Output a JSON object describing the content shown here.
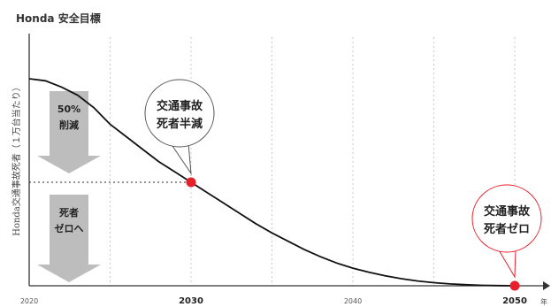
{
  "title": "Honda 安全目標",
  "chart_data": {
    "type": "line",
    "ylabel": "Honda交通事故死者（１万台当たり）",
    "x_unit": "年",
    "xlim": [
      2020,
      2050
    ],
    "ylim": [
      0,
      1
    ],
    "x_ticks": [
      {
        "value": 2020,
        "label": "2020",
        "emphasis": false
      },
      {
        "value": 2030,
        "label": "2030",
        "emphasis": true
      },
      {
        "value": 2040,
        "label": "2040",
        "emphasis": false
      },
      {
        "value": 2050,
        "label": "2050",
        "emphasis": true
      }
    ],
    "grid": "vertical-dashed",
    "series": [
      {
        "x": [
          2020,
          2021,
          2022,
          2023,
          2024,
          2025,
          2026,
          2027,
          2028,
          2029,
          2030,
          2031,
          2032,
          2033,
          2034,
          2035,
          2036,
          2037,
          2038,
          2039,
          2040,
          2041,
          2042,
          2043,
          2044,
          2045,
          2046,
          2047,
          2048,
          2049,
          2050
        ],
        "values": [
          1.0,
          0.99,
          0.96,
          0.92,
          0.86,
          0.78,
          0.72,
          0.66,
          0.6,
          0.55,
          0.5,
          0.45,
          0.4,
          0.35,
          0.3,
          0.255,
          0.215,
          0.175,
          0.14,
          0.11,
          0.085,
          0.065,
          0.048,
          0.034,
          0.023,
          0.015,
          0.009,
          0.005,
          0.002,
          0.001,
          0.0
        ],
        "color": "#111111"
      }
    ],
    "markers": [
      {
        "x": 2030,
        "y": 0.5,
        "color": "#e8202a"
      },
      {
        "x": 2050,
        "y": 0.0,
        "color": "#e8202a"
      }
    ],
    "reference_line": {
      "y": 0.5,
      "style": "dotted"
    },
    "callouts": [
      {
        "lines": [
          "交通事故",
          "死者半減"
        ],
        "target_x": 2030,
        "border": "#555555"
      },
      {
        "lines": [
          "交通事故",
          "死者ゼロ"
        ],
        "target_x": 2050,
        "border": "#e8202a"
      }
    ],
    "arrows": [
      {
        "lines": [
          "50%",
          "削減"
        ],
        "from": 1.0,
        "to": 0.5
      },
      {
        "lines": [
          "死者",
          "ゼロへ"
        ],
        "from": 0.5,
        "to": 0.0
      }
    ],
    "arrow_color": "#bdbdbd"
  }
}
